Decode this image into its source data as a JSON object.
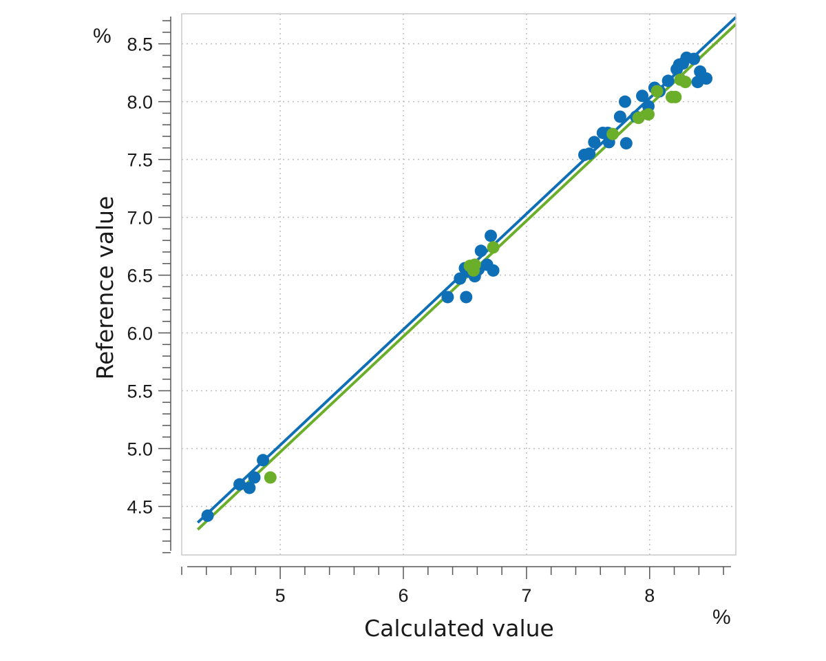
{
  "chart_data": {
    "type": "scatter",
    "xlabel": "Calculated value",
    "ylabel": "Reference value",
    "x_unit": "%",
    "y_unit": "%",
    "xlim": [
      4.2,
      8.7
    ],
    "ylim": [
      4.08,
      8.76
    ],
    "x_ticks": [
      5,
      6,
      7,
      8
    ],
    "x_tick_labels": [
      "5",
      "6",
      "7",
      "8"
    ],
    "y_ticks": [
      4.5,
      5.0,
      5.5,
      6.0,
      6.5,
      7.0,
      7.5,
      8.0,
      8.5
    ],
    "y_tick_labels": [
      "4.5",
      "5.0",
      "5.5",
      "6.0",
      "6.5",
      "7.0",
      "7.5",
      "8.0",
      "8.5"
    ],
    "grid": true,
    "series": [
      {
        "color": "#0e6fb6",
        "points": [
          [
            4.41,
            4.42
          ],
          [
            4.67,
            4.69
          ],
          [
            4.75,
            4.66
          ],
          [
            4.79,
            4.75
          ],
          [
            4.86,
            4.9
          ],
          [
            6.36,
            6.31
          ],
          [
            6.46,
            6.47
          ],
          [
            6.5,
            6.56
          ],
          [
            6.51,
            6.31
          ],
          [
            6.53,
            6.53
          ],
          [
            6.58,
            6.49
          ],
          [
            6.61,
            6.55
          ],
          [
            6.63,
            6.71
          ],
          [
            6.68,
            6.59
          ],
          [
            6.71,
            6.84
          ],
          [
            6.73,
            6.54
          ],
          [
            7.47,
            7.54
          ],
          [
            7.51,
            7.55
          ],
          [
            7.55,
            7.65
          ],
          [
            7.62,
            7.73
          ],
          [
            7.66,
            7.73
          ],
          [
            7.67,
            7.65
          ],
          [
            7.76,
            7.87
          ],
          [
            7.8,
            8.0
          ],
          [
            7.81,
            7.64
          ],
          [
            7.89,
            7.87
          ],
          [
            7.94,
            8.05
          ],
          [
            7.99,
            7.96
          ],
          [
            8.04,
            8.12
          ],
          [
            8.08,
            8.09
          ],
          [
            8.15,
            8.18
          ],
          [
            8.22,
            8.28
          ],
          [
            8.24,
            8.32
          ],
          [
            8.27,
            8.33
          ],
          [
            8.3,
            8.38
          ],
          [
            8.36,
            8.37
          ],
          [
            8.39,
            8.17
          ],
          [
            8.41,
            8.26
          ],
          [
            8.46,
            8.2
          ]
        ],
        "fit": {
          "slope": 1.0,
          "intercept": 0.03
        }
      },
      {
        "color": "#6aae2a",
        "points": [
          [
            4.92,
            4.75
          ],
          [
            6.54,
            6.58
          ],
          [
            6.57,
            6.54
          ],
          [
            6.58,
            6.59
          ],
          [
            6.73,
            6.74
          ],
          [
            7.7,
            7.72
          ],
          [
            7.91,
            7.86
          ],
          [
            7.99,
            7.89
          ],
          [
            8.06,
            8.09
          ],
          [
            8.18,
            8.04
          ],
          [
            8.21,
            8.04
          ],
          [
            8.25,
            8.19
          ],
          [
            8.29,
            8.17
          ]
        ],
        "fit": {
          "slope": 1.0,
          "intercept": -0.03
        }
      }
    ]
  }
}
